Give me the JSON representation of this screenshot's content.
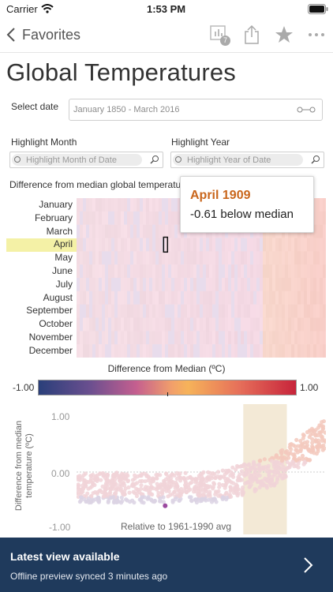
{
  "status": {
    "carrier": "Carrier",
    "time": "1:53 PM"
  },
  "nav": {
    "back_label": "Favorites",
    "badge": "7"
  },
  "page_title": "Global Temperatures",
  "filters": {
    "select_date_label": "Select date",
    "select_date_value": "January 1850 - March 2016",
    "highlight_month_label": "Highlight Month",
    "highlight_month_placeholder": "Highlight Month of Date",
    "highlight_year_label": "Highlight Year",
    "highlight_year_placeholder": "Highlight Year of Date"
  },
  "heatmap_title": "Difference from median global temperature",
  "tooltip": {
    "title": "April 1909",
    "value": "-0.61 below median"
  },
  "legend": {
    "title": "Difference from Median (ºC)",
    "min": "-1.00",
    "max": "1.00"
  },
  "colors": {
    "highlight_row": "#f4f1a6",
    "tooltip_title": "#c9661c",
    "banner_bg": "#1f3a5c",
    "band": "#f3e9d6"
  },
  "chart_data": [
    {
      "type": "heatmap",
      "categories": [
        "January",
        "February",
        "March",
        "April",
        "May",
        "June",
        "July",
        "August",
        "September",
        "October",
        "November",
        "December"
      ],
      "x_range": [
        "January 1850",
        "March 2016"
      ],
      "highlighted_month": "April",
      "highlighted_cell": {
        "month": "April",
        "year": 1909,
        "value": -0.61
      },
      "colorbar": {
        "min": -1.0,
        "max": 1.0,
        "title": "Difference from Median (ºC)"
      }
    },
    {
      "type": "scatter",
      "ylabel": "Difference from median temperature (ºC)",
      "yticks": [
        "1.00",
        "0.00",
        "-1.00"
      ],
      "ylim": [
        -1.0,
        1.0
      ],
      "xlim": [
        1850,
        2016
      ],
      "note": "Relative to 1961-1990 avg",
      "highlight_range": [
        1961,
        1990
      ],
      "highlighted_point": {
        "x": 1909,
        "y": -0.61
      }
    }
  ],
  "banner": {
    "title": "Latest view available",
    "subtitle": "Offline preview synced 3 minutes ago"
  }
}
